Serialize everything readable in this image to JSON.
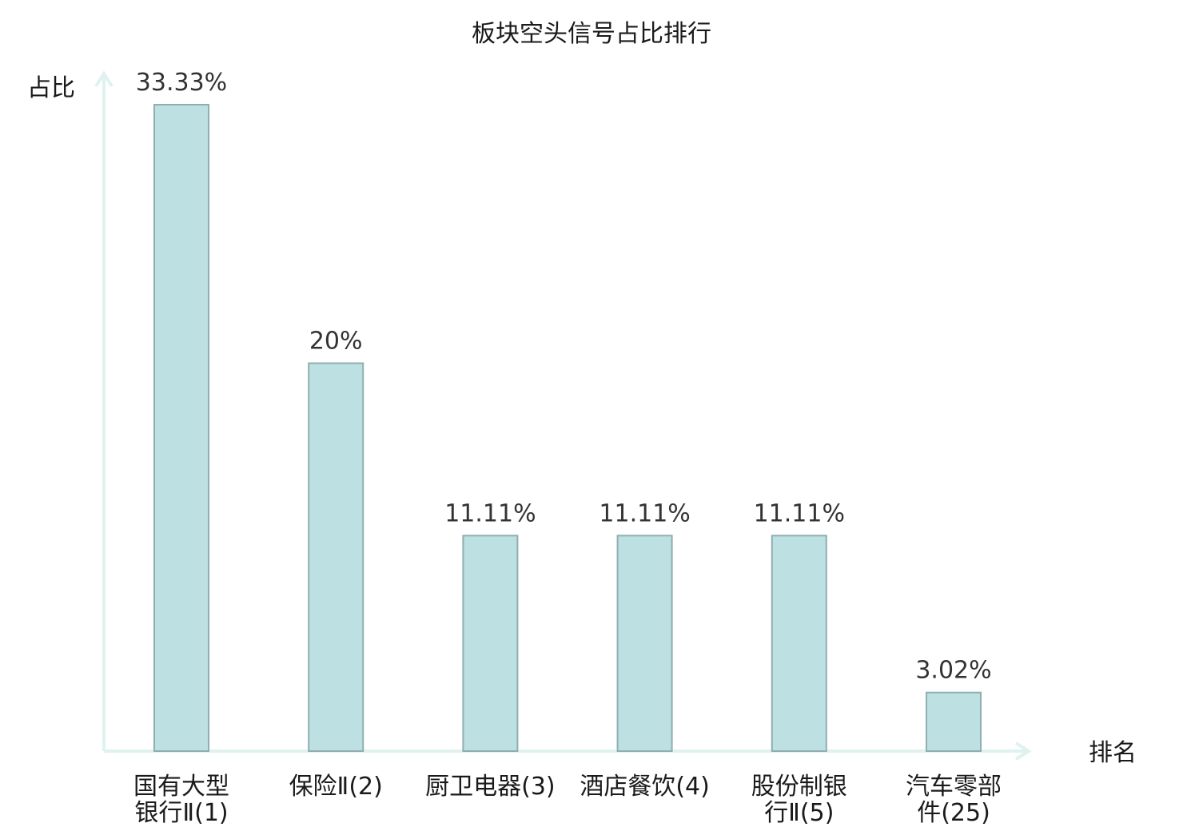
{
  "chart_data": {
    "type": "bar",
    "title": "板块空头信号占比排行",
    "ylabel": "占比",
    "xlabel": "排名",
    "categories": [
      [
        "国有大型",
        "银行Ⅱ(1)"
      ],
      [
        "保险Ⅱ(2)"
      ],
      [
        "厨卫电器(3)"
      ],
      [
        "酒店餐饮(4)"
      ],
      [
        "股份制银",
        "行Ⅱ(5)"
      ],
      [
        "汽车零部",
        "件(25)"
      ]
    ],
    "values": [
      33.33,
      20,
      11.11,
      11.11,
      11.11,
      3.02
    ],
    "value_labels": [
      "33.33%",
      "20%",
      "11.11%",
      "11.11%",
      "11.11%",
      "3.02%"
    ],
    "highlight_index": 5,
    "ylim": [
      0,
      33.33
    ],
    "grid": false,
    "colors": {
      "bar_fill": "#bde0e3",
      "bar_stroke": "#8faeb0",
      "axis": "#dff2ef",
      "highlight_text": "#e3141b",
      "text": "#1a1a1a"
    }
  }
}
